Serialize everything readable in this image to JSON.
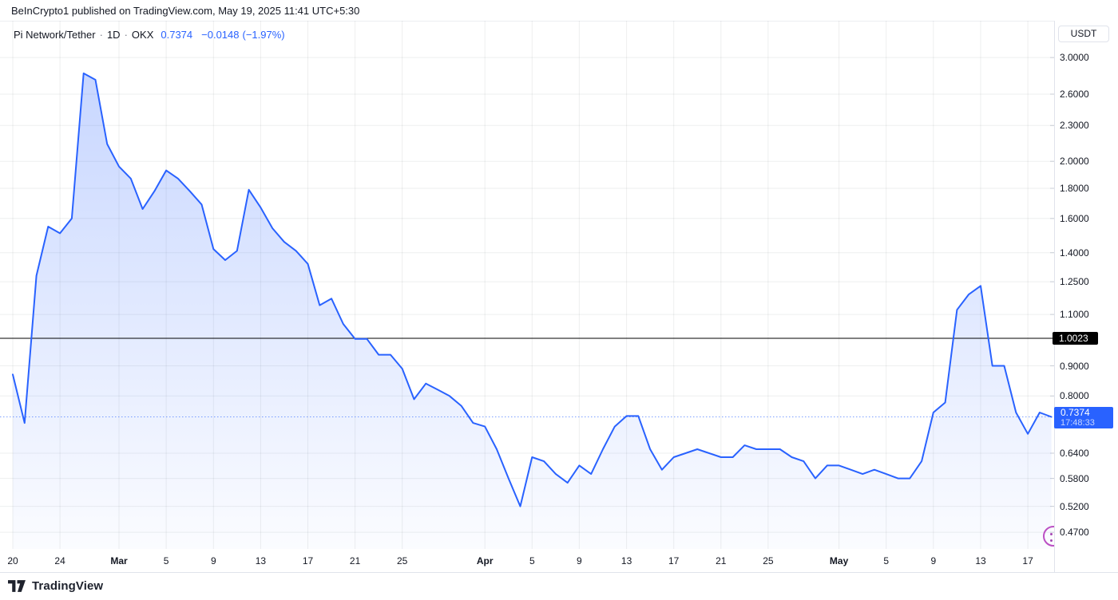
{
  "header": {
    "attribution": "BeInCrypto1 published on TradingView.com, May 19, 2025 11:41 UTC+5:30"
  },
  "legend": {
    "symbol": "Pi Network/Tether",
    "separator": "·",
    "interval": "1D",
    "exchange": "OKX",
    "price": "0.7374",
    "change": "−0.0148",
    "change_pct": "(−1.97%)"
  },
  "price_scale": {
    "currency_button": "USDT",
    "labels": [
      "3.0000",
      "2.6000",
      "2.3000",
      "2.0000",
      "1.8000",
      "1.6000",
      "1.4000",
      "1.2500",
      "1.1000",
      "0.9000",
      "0.8000",
      "0.6400",
      "0.5800",
      "0.5200",
      "0.4700"
    ],
    "reference_label": "1.0023",
    "current": {
      "price": "0.7374",
      "countdown": "17:48:33"
    }
  },
  "time_scale": {
    "labels": [
      {
        "label": "20",
        "day": 0,
        "bold": false
      },
      {
        "label": "24",
        "day": 4,
        "bold": false
      },
      {
        "label": "Mar",
        "day": 9,
        "bold": true
      },
      {
        "label": "5",
        "day": 13,
        "bold": false
      },
      {
        "label": "9",
        "day": 17,
        "bold": false
      },
      {
        "label": "13",
        "day": 21,
        "bold": false
      },
      {
        "label": "17",
        "day": 25,
        "bold": false
      },
      {
        "label": "21",
        "day": 29,
        "bold": false
      },
      {
        "label": "25",
        "day": 33,
        "bold": false
      },
      {
        "label": "Apr",
        "day": 40,
        "bold": true
      },
      {
        "label": "5",
        "day": 44,
        "bold": false
      },
      {
        "label": "9",
        "day": 48,
        "bold": false
      },
      {
        "label": "13",
        "day": 52,
        "bold": false
      },
      {
        "label": "17",
        "day": 56,
        "bold": false
      },
      {
        "label": "21",
        "day": 60,
        "bold": false
      },
      {
        "label": "25",
        "day": 64,
        "bold": false
      },
      {
        "label": "May",
        "day": 70,
        "bold": true
      },
      {
        "label": "5",
        "day": 74,
        "bold": false
      },
      {
        "label": "9",
        "day": 78,
        "bold": false
      },
      {
        "label": "13",
        "day": 82,
        "bold": false
      },
      {
        "label": "17",
        "day": 86,
        "bold": false
      }
    ]
  },
  "footer": {
    "brand": "TradingView"
  },
  "colors": {
    "accent_blue": "#2962FF",
    "reference_line": "#000000",
    "text": "#131722",
    "grid": "rgba(42,46,57,0.08)",
    "border": "#e0e3eb",
    "tick": "#c9cdd6",
    "fill_top": "rgba(41,98,255,0.26)",
    "fill_bottom": "rgba(41,98,255,0.02)",
    "reaction_purple": "#bb4fc4"
  },
  "chart_data": {
    "type": "area",
    "symbol": "Pi Network/Tether",
    "interval": "1D",
    "exchange": "OKX",
    "currency": "USDT",
    "scale": "logarithmic",
    "dates": {
      "start": "2025-02-20",
      "end": "2025-05-19",
      "step": "1 day"
    },
    "values": [
      0.87,
      0.72,
      1.28,
      1.55,
      1.51,
      1.6,
      2.82,
      2.75,
      2.14,
      1.96,
      1.87,
      1.66,
      1.78,
      1.93,
      1.87,
      1.78,
      1.69,
      1.42,
      1.36,
      1.41,
      1.79,
      1.67,
      1.54,
      1.46,
      1.41,
      1.34,
      1.14,
      1.17,
      1.06,
      1.0,
      1.0,
      0.94,
      0.94,
      0.89,
      0.79,
      0.84,
      0.82,
      0.8,
      0.77,
      0.72,
      0.71,
      0.65,
      0.58,
      0.52,
      0.63,
      0.62,
      0.59,
      0.57,
      0.61,
      0.59,
      0.65,
      0.71,
      0.74,
      0.74,
      0.65,
      0.6,
      0.63,
      0.64,
      0.65,
      0.64,
      0.63,
      0.63,
      0.66,
      0.65,
      0.65,
      0.65,
      0.63,
      0.62,
      0.58,
      0.61,
      0.61,
      0.6,
      0.59,
      0.6,
      0.59,
      0.58,
      0.58,
      0.62,
      0.75,
      0.78,
      1.12,
      1.19,
      1.23,
      0.9,
      0.9,
      0.75,
      0.69,
      0.75,
      0.7374
    ],
    "y_axis_ticks": [
      3.0,
      2.6,
      2.3,
      2.0,
      1.8,
      1.6,
      1.4,
      1.25,
      1.1,
      0.9,
      0.8,
      0.64,
      0.58,
      0.52,
      0.47
    ],
    "reference_line_value": 1.0023,
    "current_price": 0.7374,
    "current_countdown": "17:48:33",
    "ylim": [
      0.45,
      3.1
    ],
    "grid": true,
    "legend_position": "top-left"
  }
}
